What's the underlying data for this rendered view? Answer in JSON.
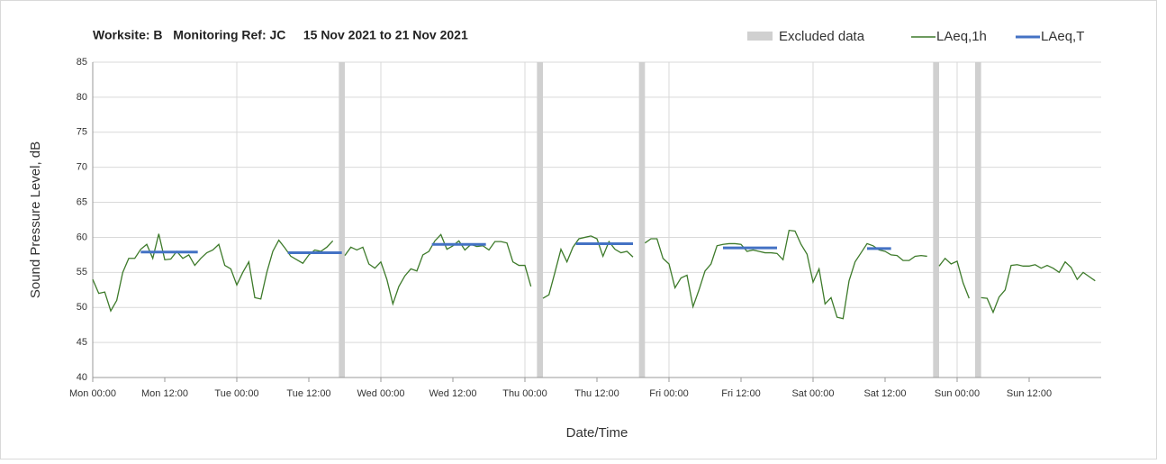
{
  "chart_data": {
    "type": "line",
    "title": "Worksite: B   Monitoring Ref: JC     15 Nov 2021 to 21 Nov 2021",
    "y_label": "Sound Pressure Level, dB",
    "x_label": "Date/Time",
    "xlim": [
      0,
      168
    ],
    "ylim": [
      40,
      85
    ],
    "yticks": [
      40,
      45,
      50,
      55,
      60,
      65,
      70,
      75,
      80,
      85
    ],
    "xticks": [
      {
        "value": 0,
        "label": "Mon 00:00"
      },
      {
        "value": 12,
        "label": "Mon 12:00"
      },
      {
        "value": 24,
        "label": "Tue 00:00"
      },
      {
        "value": 36,
        "label": "Tue 12:00"
      },
      {
        "value": 48,
        "label": "Wed 00:00"
      },
      {
        "value": 60,
        "label": "Wed 12:00"
      },
      {
        "value": 72,
        "label": "Thu 00:00"
      },
      {
        "value": 84,
        "label": "Thu 12:00"
      },
      {
        "value": 96,
        "label": "Fri 00:00"
      },
      {
        "value": 108,
        "label": "Fri 12:00"
      },
      {
        "value": 120,
        "label": "Sat 00:00"
      },
      {
        "value": 132,
        "label": "Sat 12:00"
      },
      {
        "value": 144,
        "label": "Sun 00:00"
      },
      {
        "value": 156,
        "label": "Sun 12:00"
      }
    ],
    "grid": true,
    "excluded": {
      "name": "Excluded data",
      "color": "#d0d0d0",
      "ranges": [
        [
          41,
          42
        ],
        [
          74,
          75
        ],
        [
          91,
          92
        ],
        [
          140,
          141
        ],
        [
          147,
          148
        ]
      ]
    },
    "series": [
      {
        "name": "LAeq,1h",
        "color": "#3d7a2a",
        "x": [
          0,
          1,
          2,
          3,
          4,
          5,
          6,
          7,
          8,
          9,
          10,
          11,
          12,
          13,
          14,
          15,
          16,
          17,
          18,
          19,
          20,
          21,
          22,
          23,
          24,
          25,
          26,
          27,
          28,
          29,
          30,
          31,
          32,
          33,
          34,
          35,
          36,
          37,
          38,
          39,
          40,
          41,
          42,
          43,
          44,
          45,
          46,
          47,
          48,
          49,
          50,
          51,
          52,
          53,
          54,
          55,
          56,
          57,
          58,
          59,
          60,
          61,
          62,
          63,
          64,
          65,
          66,
          67,
          68,
          69,
          70,
          71,
          72,
          73,
          74,
          75,
          76,
          77,
          78,
          79,
          80,
          81,
          82,
          83,
          84,
          85,
          86,
          87,
          88,
          89,
          90,
          91,
          92,
          93,
          94,
          95,
          96,
          97,
          98,
          99,
          100,
          101,
          102,
          103,
          104,
          105,
          106,
          107,
          108,
          109,
          110,
          111,
          112,
          113,
          114,
          115,
          116,
          117,
          118,
          119,
          120,
          121,
          122,
          123,
          124,
          125,
          126,
          127,
          128,
          129,
          130,
          131,
          132,
          133,
          134,
          135,
          136,
          137,
          138,
          139,
          140,
          141,
          142,
          143,
          144,
          145,
          146,
          147,
          148,
          149,
          150,
          151,
          152,
          153,
          154,
          155,
          156,
          157,
          158,
          159,
          160,
          161,
          162,
          163,
          164,
          165,
          166,
          167
        ],
        "values": [
          54,
          52,
          52.2,
          49.5,
          51,
          55,
          57,
          57,
          58.3,
          59,
          57,
          60.5,
          56.8,
          56.9,
          58,
          57,
          57.5,
          56,
          57,
          57.8,
          58.2,
          59,
          56,
          55.5,
          53.2,
          55,
          56.5,
          51.4,
          51.2,
          55,
          58,
          59.6,
          58.5,
          57.3,
          56.8,
          56.3,
          57.5,
          58.2,
          58,
          58.6,
          59.5,
          null,
          57.4,
          58.6,
          58.2,
          58.6,
          56.2,
          55.6,
          56.5,
          54,
          50.5,
          53,
          54.5,
          55.5,
          55.2,
          57.5,
          58,
          59.5,
          60.4,
          58.3,
          58.8,
          59.5,
          58.2,
          59,
          58.7,
          58.8,
          58.2,
          59.4,
          59.4,
          59.2,
          56.5,
          56,
          56,
          53,
          null,
          51.3,
          51.8,
          55,
          58.3,
          56.5,
          58.6,
          59.8,
          60,
          60.2,
          59.8,
          57.3,
          59.4,
          58.3,
          57.8,
          58,
          57.2,
          null,
          59.2,
          59.8,
          59.8,
          57,
          56.2,
          52.8,
          54.2,
          54.6,
          50.1,
          52.5,
          55.2,
          56.2,
          58.8,
          59,
          59.1,
          59.1,
          59,
          58,
          58.2,
          58,
          57.8,
          57.8,
          57.7,
          56.8,
          61,
          60.9,
          59,
          57.6,
          53.6,
          55.5,
          50.5,
          51.4,
          48.6,
          48.4,
          53.8,
          56.5,
          57.8,
          59.1,
          58.8,
          58.2,
          58,
          57.5,
          57.4,
          56.7,
          56.7,
          57.3,
          57.4,
          57.3,
          null,
          55.9,
          57,
          56.2,
          56.6,
          53.5,
          51.3,
          null,
          51.4,
          51.3,
          49.3,
          51.5,
          52.5,
          56,
          56.1,
          55.9,
          55.9,
          56.1,
          55.6,
          56,
          55.6,
          55,
          56.5,
          55.7,
          54,
          55,
          54.4,
          53.8
        ]
      },
      {
        "name": "LAeq,T",
        "color": "#4472c4",
        "x": [
          [
            8,
            17.5
          ],
          [
            32.5,
            41.5
          ],
          [
            56.5,
            65.5
          ],
          [
            80.5,
            90
          ],
          [
            105,
            114
          ],
          [
            129,
            133
          ]
        ],
        "values": [
          57.9,
          57.8,
          59.0,
          59.1,
          58.5,
          58.4
        ]
      }
    ]
  }
}
